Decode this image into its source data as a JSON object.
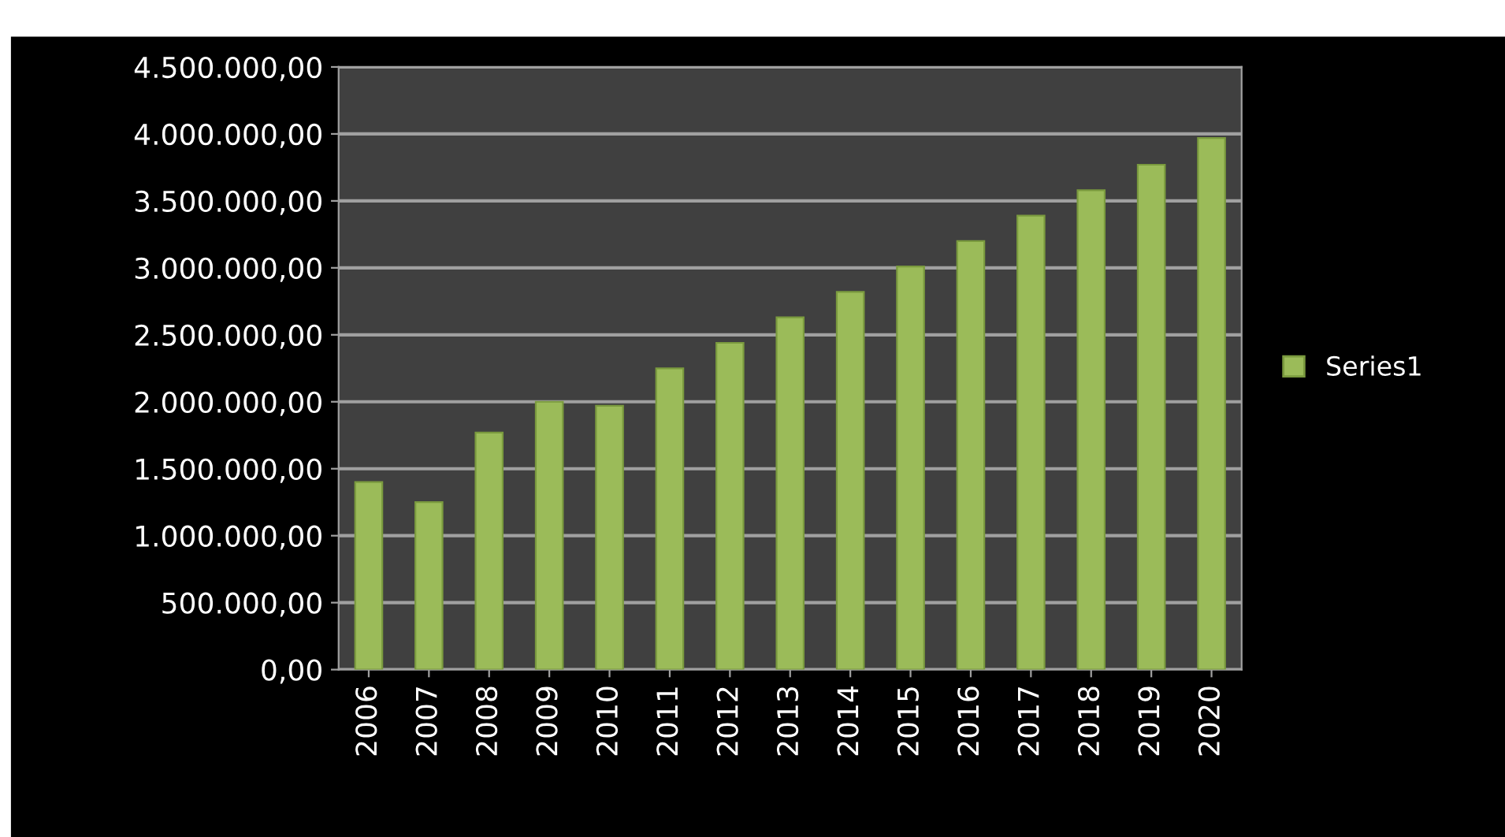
{
  "chart_data": {
    "type": "bar",
    "categories": [
      "2006",
      "2007",
      "2008",
      "2009",
      "2010",
      "2011",
      "2012",
      "2013",
      "2014",
      "2015",
      "2016",
      "2017",
      "2018",
      "2019",
      "2020"
    ],
    "series": [
      {
        "name": "Series1",
        "color": "#9bbb59",
        "values": [
          1400000,
          1250000,
          1770000,
          2000000,
          1970000,
          2250000,
          2440000,
          2630000,
          2820000,
          3010000,
          3200000,
          3390000,
          3580000,
          3770000,
          3970000
        ]
      }
    ],
    "ylim": [
      0,
      4500000
    ],
    "yticks": [
      {
        "value": 0,
        "label": "0,00"
      },
      {
        "value": 500000,
        "label": "500.000,00"
      },
      {
        "value": 1000000,
        "label": "1.000.000,00"
      },
      {
        "value": 1500000,
        "label": "1.500.000,00"
      },
      {
        "value": 2000000,
        "label": "2.000.000,00"
      },
      {
        "value": 2500000,
        "label": "2.500.000,00"
      },
      {
        "value": 3000000,
        "label": "3.000.000,00"
      },
      {
        "value": 3500000,
        "label": "3.500.000,00"
      },
      {
        "value": 4000000,
        "label": "4.000.000,00"
      },
      {
        "value": 4500000,
        "label": "4.500.000,00"
      }
    ],
    "grid": "y",
    "legend": "right"
  }
}
